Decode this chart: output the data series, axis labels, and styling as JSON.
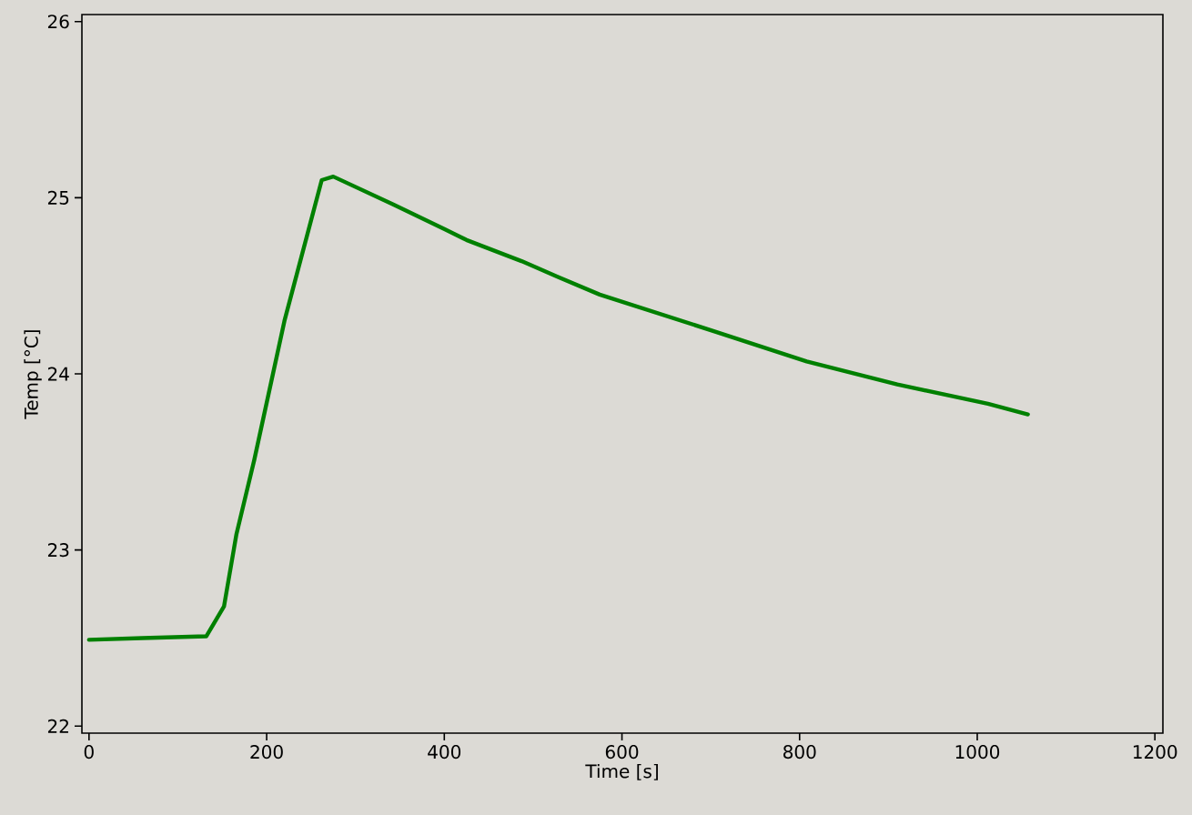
{
  "chart_data": {
    "type": "line",
    "xlabel": "Time [s]",
    "ylabel": "Temp [°C]",
    "xlim": [
      -8,
      1209
    ],
    "ylim": [
      21.96,
      26.04
    ],
    "xticks": [
      0,
      200,
      400,
      600,
      800,
      1000,
      1200
    ],
    "yticks": [
      22,
      23,
      24,
      25,
      26
    ],
    "grid": false,
    "marker": "none",
    "line_style": "solid",
    "x": [
      0,
      60,
      132,
      152,
      166,
      186,
      220,
      262,
      275,
      343,
      401,
      425,
      487,
      528,
      575,
      705,
      808,
      910,
      1012,
      1057
    ],
    "series": [
      {
        "color": "#008000",
        "values": [
          22.49,
          22.5,
          22.51,
          22.68,
          23.09,
          23.51,
          24.3,
          25.1,
          25.12,
          24.96,
          24.82,
          24.76,
          24.64,
          24.55,
          24.45,
          24.24,
          24.07,
          23.94,
          23.83,
          23.77
        ]
      }
    ]
  }
}
